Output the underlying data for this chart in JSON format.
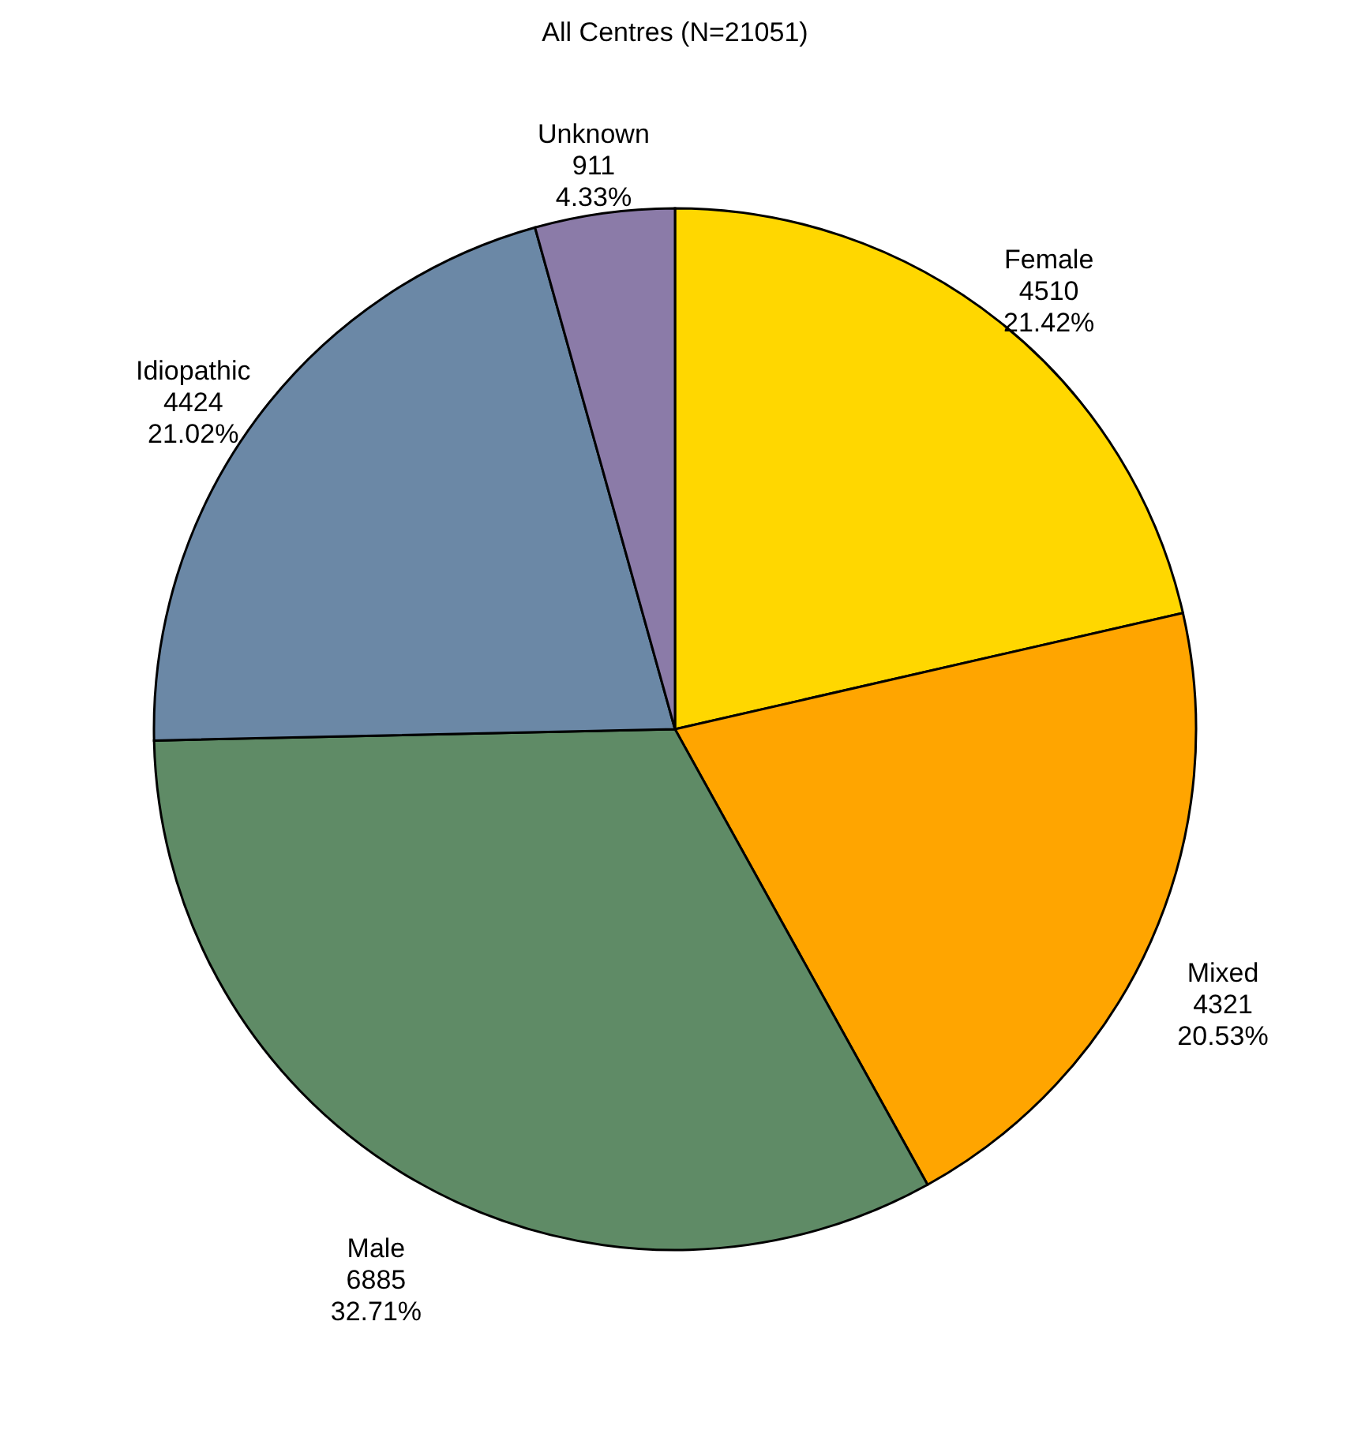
{
  "chart_data": {
    "type": "pie",
    "title": "All Centres  (N=21051)",
    "categories": [
      "Female",
      "Mixed",
      "Male",
      "Idiopathic",
      "Unknown"
    ],
    "values": [
      21.42,
      20.53,
      32.71,
      21.02,
      4.33
    ],
    "value_labels": [
      "4510\n21.42%",
      "4321\n20.53%",
      "6885\n32.71%",
      "4424\n21.02%",
      "911\n4.33%"
    ],
    "colors": [
      "#ffd700",
      "#ffa500",
      "#5f8b66",
      "#6b88a6",
      "#8b7ba8"
    ],
    "legend": false
  }
}
